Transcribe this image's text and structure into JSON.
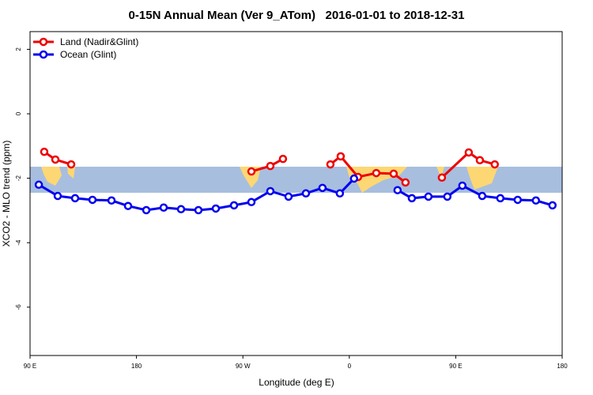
{
  "chart_data": {
    "type": "line",
    "title": "0-15N Annual Mean (Ver 9_ATom)   2016-01-01 to 2018-12-31",
    "x_label": "Longitude (deg E)",
    "y_label": "XCO2 - MLO trend (ppm)",
    "xlim": [
      90,
      540
    ],
    "xticks": [
      {
        "value": 90,
        "label": "90 E"
      },
      180,
      {
        "value": 270,
        "label": "90 W"
      },
      {
        "value": 360,
        "label": "0"
      },
      {
        "value": 450,
        "label": "90 E"
      },
      {
        "value": 540,
        "label": "180"
      }
    ],
    "ylim": [
      -7.5,
      2.55
    ],
    "yticks": [
      2,
      0,
      -2,
      -4,
      -6
    ],
    "legend": "top-left",
    "series": [
      {
        "name": "Land (Nadir&Glint)",
        "color": "#ee0000",
        "x": [
          102,
          111.4,
          124.8,
          null,
          277.2,
          293.2,
          303.9,
          null,
          344,
          352.7,
          367.4,
          382.8,
          397.5,
          407.5,
          null,
          438.3,
          461,
          470.4,
          483
        ],
        "values": [
          -1.18,
          -1.42,
          -1.57,
          null,
          -1.79,
          -1.62,
          -1.4,
          null,
          -1.57,
          -1.32,
          -1.96,
          -1.84,
          -1.86,
          -2.13,
          null,
          -1.98,
          -1.2,
          -1.44,
          -1.57
        ]
      },
      {
        "name": "Ocean (Glint)",
        "color": "#0000ee",
        "x": [
          97.4,
          113.4,
          128.1,
          142.8,
          158.9,
          172.9,
          188.3,
          203,
          217.7,
          232.4,
          247.1,
          262.5,
          277.2,
          293.2,
          308.6,
          323.3,
          337.3,
          352,
          364,
          null,
          400.8,
          412.9,
          426.9,
          442.9,
          455.6,
          472.4,
          487.7,
          502.4,
          517.8,
          531.8
        ],
        "values": [
          -2.2,
          -2.55,
          -2.62,
          -2.67,
          -2.69,
          -2.86,
          -2.99,
          -2.91,
          -2.96,
          -2.99,
          -2.94,
          -2.84,
          -2.74,
          -2.4,
          -2.57,
          -2.47,
          -2.3,
          -2.47,
          -2.01,
          null,
          -2.37,
          -2.62,
          -2.57,
          -2.57,
          -2.23,
          -2.55,
          -2.62,
          -2.67,
          -2.69,
          -2.84
        ]
      }
    ]
  }
}
